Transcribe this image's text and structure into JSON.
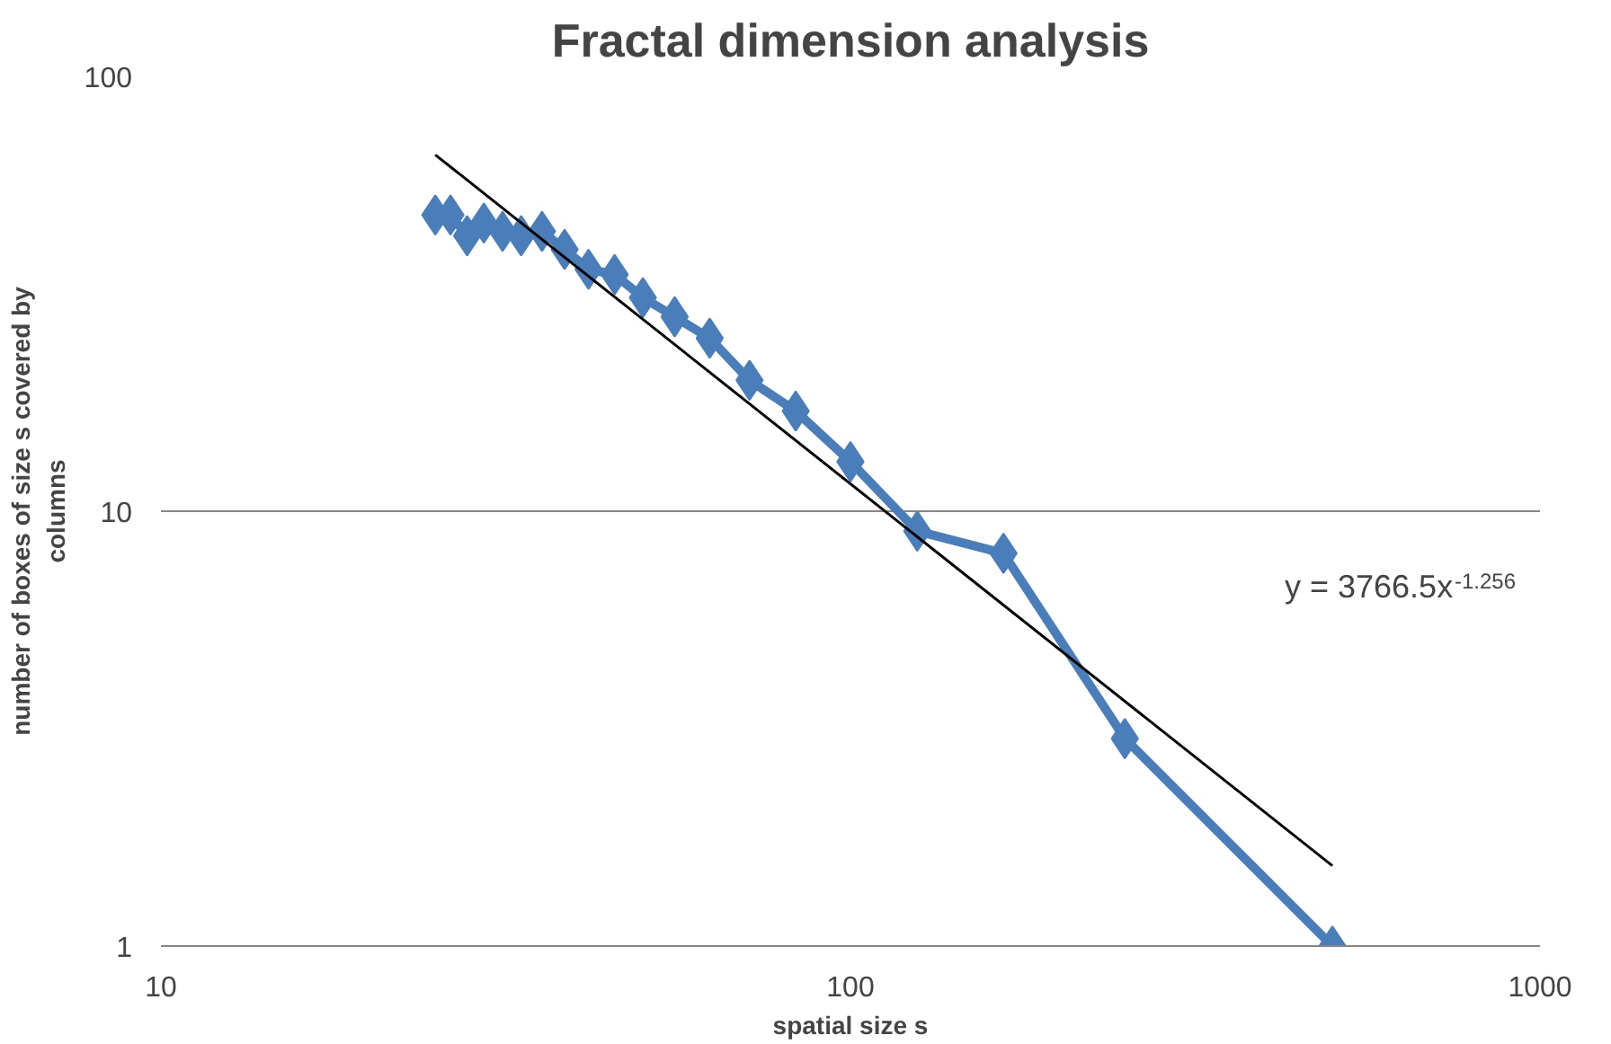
{
  "chart_data": {
    "type": "line",
    "title": "Fractal dimension analysis",
    "xlabel": "spatial size s",
    "ylabel": "number of boxes of size s covered by\ncolumns",
    "log": "xy",
    "xlim": [
      10,
      1000
    ],
    "ylim": [
      1,
      100
    ],
    "xticks": [
      10,
      100,
      1000
    ],
    "yticks": [
      1,
      10,
      100
    ],
    "grid": "y",
    "series": [
      {
        "color": "#4a7ebb",
        "marker": "diamond",
        "x": [
          25,
          26.3,
          27.8,
          29.4,
          31.3,
          33.3,
          35.7,
          38.5,
          41.7,
          45.5,
          50,
          55.6,
          62.5,
          71.4,
          83.3,
          100,
          125,
          166.7,
          250,
          500
        ],
        "values": [
          48,
          48,
          43,
          46,
          44,
          43,
          44,
          40,
          36,
          35,
          31,
          28,
          25,
          20,
          17,
          13,
          9,
          8,
          3,
          1
        ]
      },
      {
        "color": "#000000",
        "marker": "none",
        "x": [
          25,
          500
        ],
        "values": [
          66,
          1.53
        ]
      }
    ],
    "annotations": [
      "y = 3766.5x$^{-1.256}$"
    ]
  }
}
